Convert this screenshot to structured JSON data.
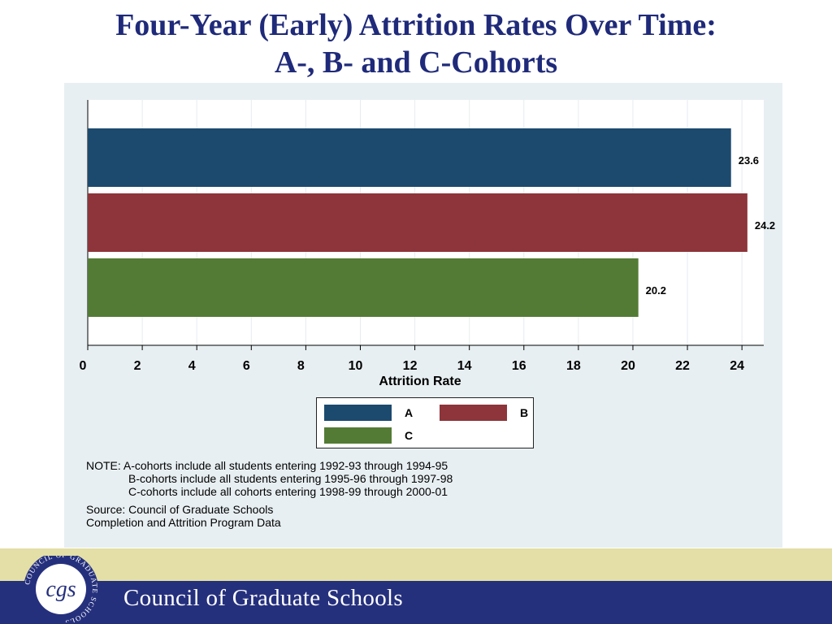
{
  "slide": {
    "title_line1": "Four-Year (Early) Attrition Rates Over Time:",
    "title_line2": "A-, B- and C-Cohorts"
  },
  "chart_data": {
    "type": "bar",
    "orientation": "horizontal",
    "xlabel": "Attrition Rate",
    "xlim": [
      0,
      24.8
    ],
    "x_ticks": [
      0,
      2,
      4,
      6,
      8,
      10,
      12,
      14,
      16,
      18,
      20,
      22,
      24
    ],
    "grid": true,
    "legend_placement": "bottom-center",
    "series": [
      {
        "name": "A",
        "value": 23.6,
        "label": "23.6",
        "color": "#1c4a6e"
      },
      {
        "name": "B",
        "value": 24.2,
        "label": "24.2",
        "color": "#8d353a"
      },
      {
        "name": "C",
        "value": 20.2,
        "label": "20.2",
        "color": "#537b35"
      }
    ]
  },
  "legend": {
    "items": [
      {
        "label": "A",
        "color": "#1c4a6e"
      },
      {
        "label": "B",
        "color": "#8d353a"
      },
      {
        "label": "C",
        "color": "#537b35"
      }
    ]
  },
  "notes": {
    "line1": "NOTE: A-cohorts include all students entering 1992-93 through 1994-95",
    "line2": "B-cohorts include all students entering 1995-96 through 1997-98",
    "line3": "C-cohorts include all cohorts entering 1998-99 through 2000-01",
    "source1": "Source: Council of Graduate Schools",
    "source2": "Completion and Attrition Program Data"
  },
  "footer": {
    "org_name": "Council of Graduate Schools",
    "logo_text": "cgs",
    "logo_ring_text": "COUNCIL OF GRADUATE SCHOOLS",
    "band_top_color": "#e3dfa7",
    "band_bottom_color": "#25307d"
  }
}
